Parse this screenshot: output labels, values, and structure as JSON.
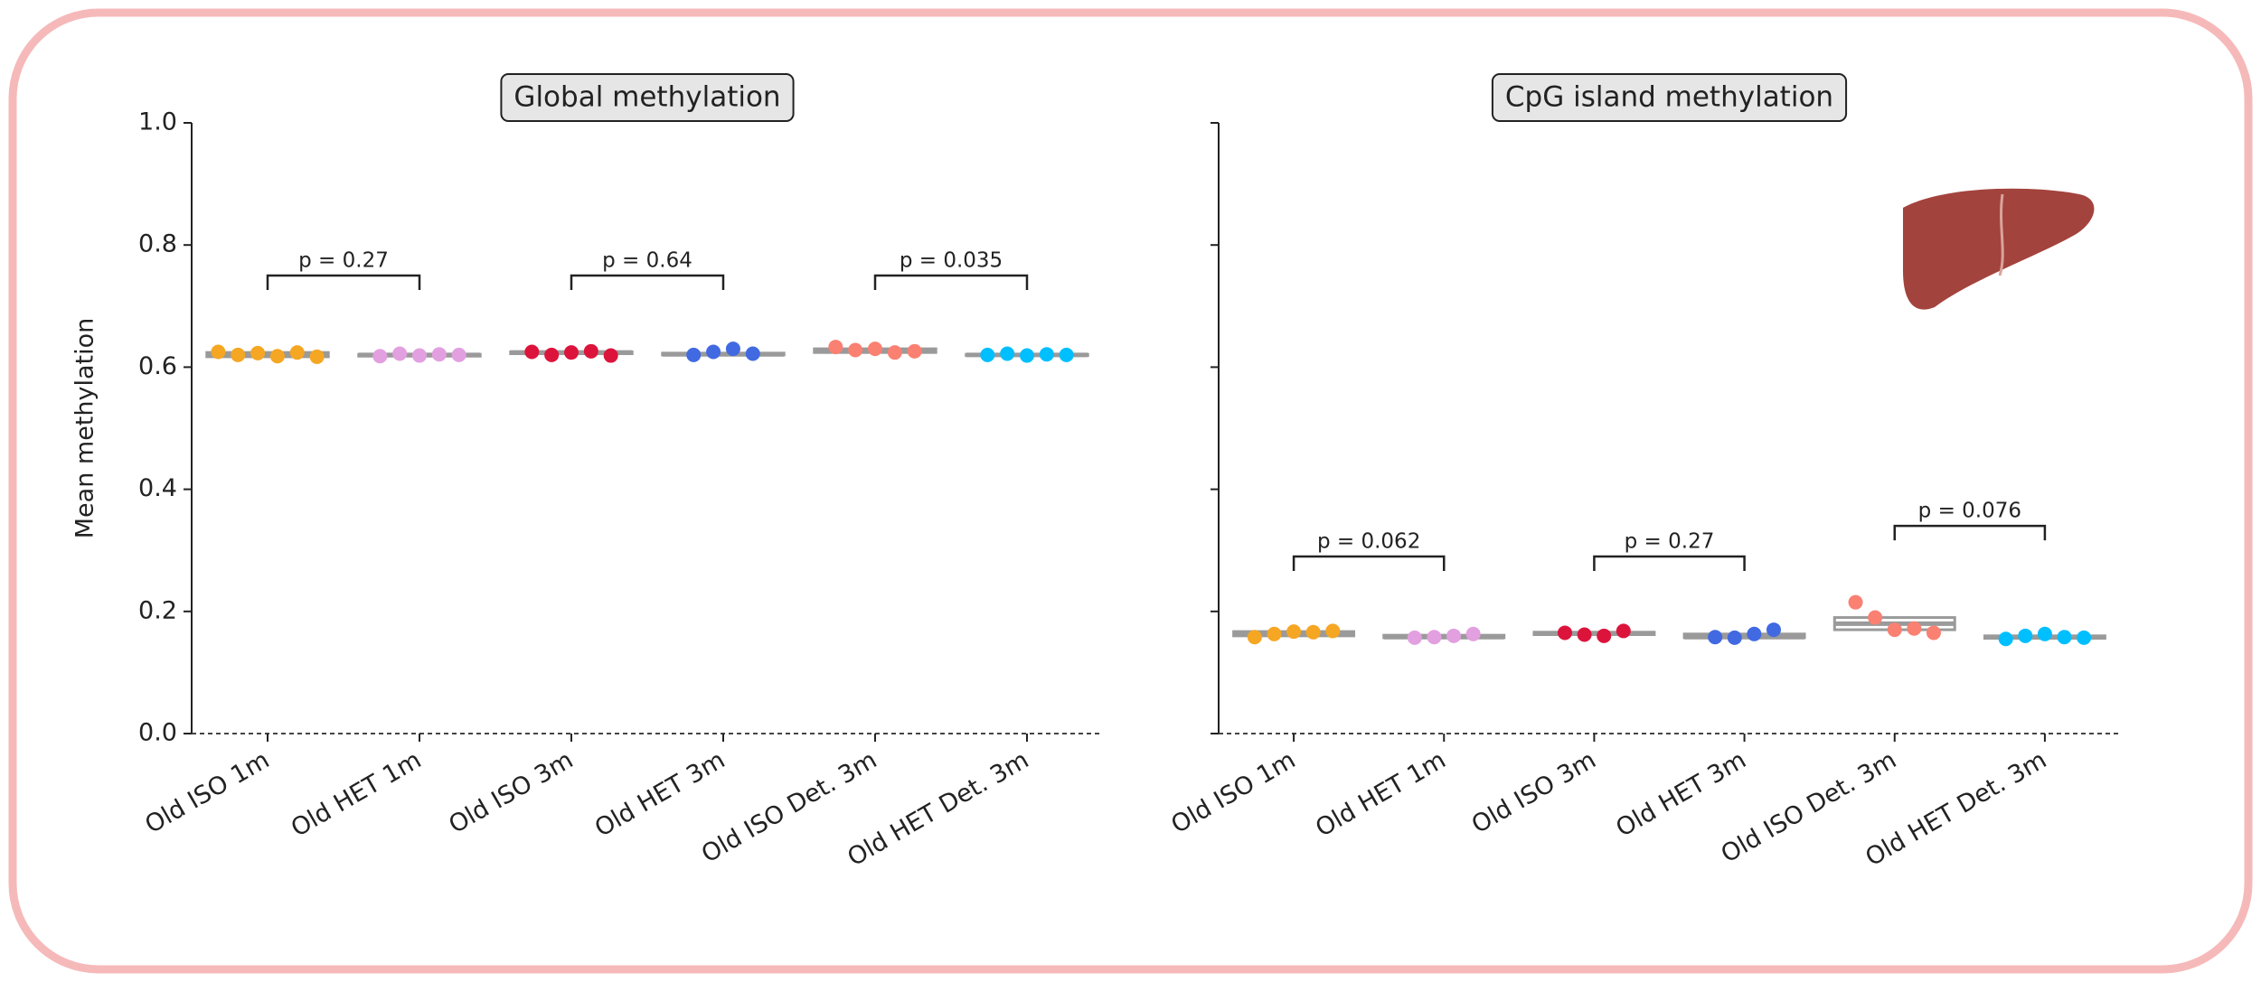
{
  "chart_data": [
    {
      "type": "strip",
      "title": "Global methylation",
      "ylabel": "Mean methylation",
      "categories": [
        "Old ISO 1m",
        "Old HET 1m",
        "Old ISO 3m",
        "Old HET 3m",
        "Old ISO Det. 3m",
        "Old HET Det. 3m"
      ],
      "colors": [
        "#f5a623",
        "#e2a0e0",
        "#dc143c",
        "#4169e1",
        "#fa8072",
        "#00bfff"
      ],
      "points": [
        [
          0.625,
          0.62,
          0.623,
          0.618,
          0.624,
          0.617
        ],
        [
          0.618,
          0.622,
          0.619,
          0.621,
          0.62
        ],
        [
          0.625,
          0.62,
          0.624,
          0.626,
          0.619
        ],
        [
          0.62,
          0.625,
          0.63,
          0.622
        ],
        [
          0.633,
          0.628,
          0.63,
          0.624,
          0.626
        ],
        [
          0.62,
          0.622,
          0.619,
          0.621,
          0.62
        ]
      ],
      "boxes": [
        [
          0.617,
          0.621,
          0.624
        ],
        [
          0.618,
          0.62,
          0.621
        ],
        [
          0.622,
          0.624,
          0.625
        ],
        [
          0.62,
          0.621,
          0.623
        ],
        [
          0.624,
          0.627,
          0.63
        ],
        [
          0.619,
          0.62,
          0.621
        ]
      ],
      "brackets": [
        {
          "label": "p = 0.27",
          "y": 0.75
        },
        {
          "label": "p = 0.64",
          "y": 0.75
        },
        {
          "label": "p = 0.035",
          "y": 0.75
        }
      ],
      "ylim": [
        0,
        1
      ],
      "yticks": [
        {
          "value": 0,
          "label": "0.0"
        },
        0.2,
        0.4,
        0.6,
        0.8,
        {
          "value": 1,
          "label": "1.0"
        }
      ]
    },
    {
      "type": "strip",
      "title": "CpG island methylation",
      "categories": [
        "Old ISO 1m",
        "Old HET 1m",
        "Old ISO 3m",
        "Old HET 3m",
        "Old ISO Det. 3m",
        "Old HET Det. 3m"
      ],
      "colors": [
        "#f5a623",
        "#e2a0e0",
        "#dc143c",
        "#4169e1",
        "#fa8072",
        "#00bfff"
      ],
      "points": [
        [
          0.158,
          0.163,
          0.167,
          0.166,
          0.168
        ],
        [
          0.157,
          0.158,
          0.16,
          0.163
        ],
        [
          0.165,
          0.162,
          0.16,
          0.168
        ],
        [
          0.158,
          0.157,
          0.163,
          0.17
        ],
        [
          0.215,
          0.19,
          0.17,
          0.172,
          0.165
        ],
        [
          0.155,
          0.16,
          0.163,
          0.158,
          0.157
        ]
      ],
      "boxes": [
        [
          0.16,
          0.164,
          0.167
        ],
        [
          0.157,
          0.158,
          0.161
        ],
        [
          0.162,
          0.164,
          0.166
        ],
        [
          0.157,
          0.158,
          0.163
        ],
        [
          0.17,
          0.18,
          0.19
        ],
        [
          0.156,
          0.158,
          0.16
        ]
      ],
      "brackets": [
        {
          "label": "p = 0.062",
          "y": 0.29
        },
        {
          "label": "p = 0.27",
          "y": 0.29
        },
        {
          "label": "p = 0.076",
          "y": 0.34
        }
      ],
      "ylim": [
        0,
        1
      ],
      "yticks": [
        0,
        0.2,
        0.4,
        0.6,
        0.8,
        1
      ]
    }
  ]
}
